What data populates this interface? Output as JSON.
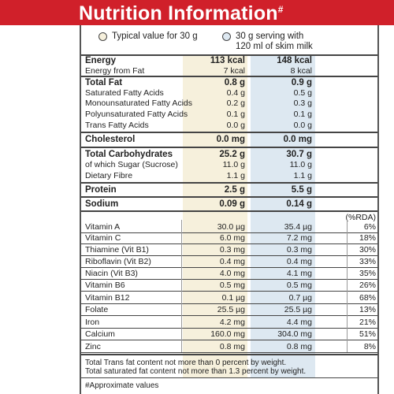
{
  "title": "Nutrition Information",
  "title_mark": "#",
  "legend": {
    "col1": "Typical value for 30 g",
    "col2_line1": "30 g serving with",
    "col2_line2": "120 ml of skim milk"
  },
  "rows": [
    {
      "label": "Energy",
      "v1": "113 kcal",
      "v2": "148 kcal",
      "bold": true
    },
    {
      "label": "Energy from Fat",
      "v1": "7 kcal",
      "v2": "8 kcal"
    },
    {
      "label": "Total Fat",
      "v1": "0.8 g",
      "v2": "0.9 g",
      "bold": true
    },
    {
      "label": "Saturated Fatty Acids",
      "v1": "0.4 g",
      "v2": "0.5 g"
    },
    {
      "label": "Monounsaturated Fatty Acids",
      "v1": "0.2 g",
      "v2": "0.3 g"
    },
    {
      "label": "Polyunsaturated Fatty Acids",
      "v1": "0.1 g",
      "v2": "0.1 g"
    },
    {
      "label": "Trans Fatty Acids",
      "v1": "0.0 g",
      "v2": "0.0 g"
    },
    {
      "label": "Cholesterol",
      "v1": "0.0 mg",
      "v2": "0.0 mg",
      "bold": true
    },
    {
      "label": "Total Carbohydrates",
      "v1": "25.2 g",
      "v2": "30.7 g",
      "bold": true
    },
    {
      "label": "of which Sugar (Sucrose)",
      "v1": "11.0 g",
      "v2": "11.0 g"
    },
    {
      "label": "Dietary Fibre",
      "v1": "1.1 g",
      "v2": "1.1 g"
    },
    {
      "label": "Protein",
      "v1": "2.5 g",
      "v2": "5.5 g",
      "bold": true
    },
    {
      "label": "Sodium",
      "v1": "0.09 g",
      "v2": "0.14 g",
      "bold": true
    }
  ],
  "rda_header": "(%RDA)",
  "vitamins": [
    {
      "label": "Vitamin A",
      "v1": "30.0 µg",
      "v2": "35.4 µg",
      "pct": "6%"
    },
    {
      "label": "Vitamin C",
      "v1": "6.0 mg",
      "v2": "7.2 mg",
      "pct": "18%"
    },
    {
      "label": "Thiamine (Vit B1)",
      "v1": "0.3 mg",
      "v2": "0.3 mg",
      "pct": "30%"
    },
    {
      "label": "Riboflavin (Vit B2)",
      "v1": "0.4 mg",
      "v2": "0.4 mg",
      "pct": "33%"
    },
    {
      "label": "Niacin (Vit B3)",
      "v1": "4.0 mg",
      "v2": "4.1 mg",
      "pct": "35%"
    },
    {
      "label": "Vitamin B6",
      "v1": "0.5 mg",
      "v2": "0.5 mg",
      "pct": "26%"
    },
    {
      "label": "Vitamin B12",
      "v1": "0.1 µg",
      "v2": "0.7 µg",
      "pct": "68%"
    },
    {
      "label": "Folate",
      "v1": "25.5 µg",
      "v2": "25.5 µg",
      "pct": "13%"
    },
    {
      "label": "Iron",
      "v1": "4.2 mg",
      "v2": "4.4 mg",
      "pct": "21%"
    },
    {
      "label": "Calcium",
      "v1": "160.0 mg",
      "v2": "304.0 mg",
      "pct": "51%"
    },
    {
      "label": "Zinc",
      "v1": "0.8 mg",
      "v2": "0.8 mg",
      "pct": "8%"
    }
  ],
  "footnotes": [
    "Total Trans fat content not more than 0 percent by weight.",
    "Total saturated fat content not more than 1.3 percent by weight."
  ],
  "approx_note": "#Approximate values",
  "colors": {
    "header": "#d0202a",
    "col1": "#f6f0dc",
    "col2": "#dde8f1"
  }
}
